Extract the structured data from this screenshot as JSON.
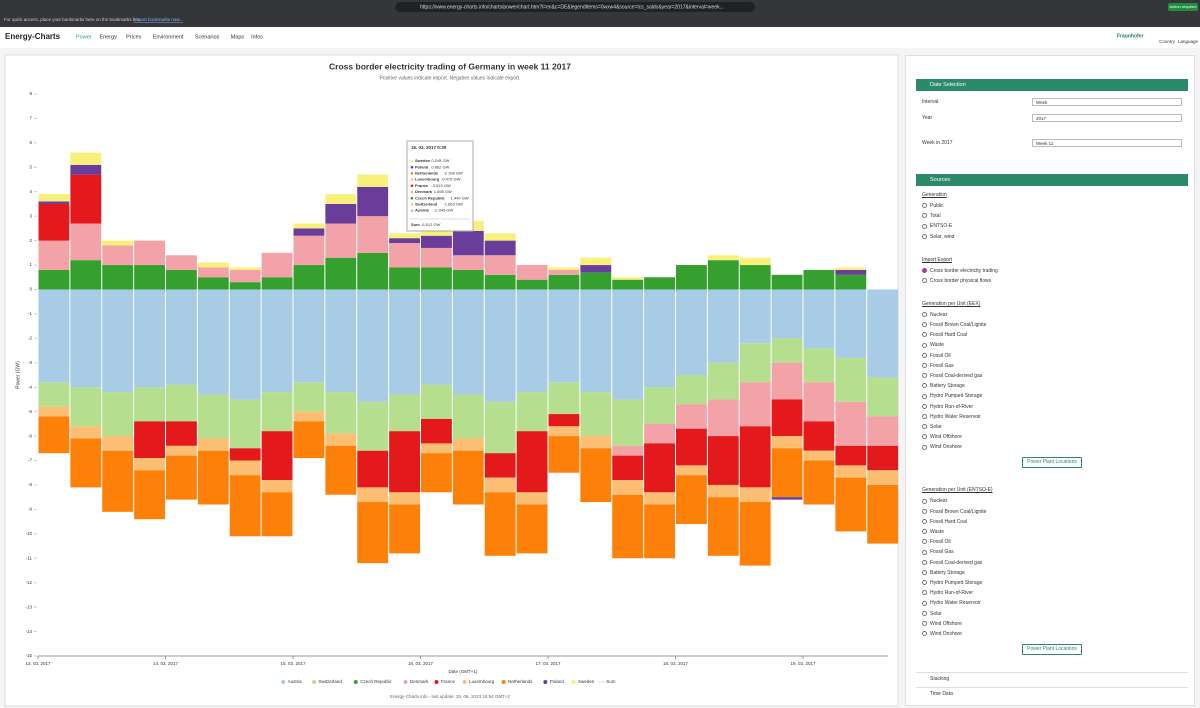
{
  "browser": {
    "url": "https://www.energy-charts.info/charts/power/chart.htm?l=en&c=DE&legendItems=0wxw4&source=tcs_saldo&year=2017&interval=week...",
    "bookmarks_hint": "For quick access, place your bookmarks here on the bookmarks bar.",
    "bookmarks_link": "Import bookmarks now...",
    "action_button": "Action required"
  },
  "nav": {
    "logo": "Energy-Charts",
    "menu": [
      "Power",
      "Energy",
      "Prices",
      "Environment",
      "Scenarios",
      "Maps",
      "Infos"
    ],
    "org": "Fraunhofer",
    "country": "Country",
    "language": "Language"
  },
  "chart_data": {
    "type": "stacked_bar",
    "title": "Cross border electricity trading of Germany in week 11 2017",
    "subtitle": "Positive values indicate import. Negative values indicate export.",
    "y_label": "Power (GW)",
    "x_label": "Date (GMT+1)",
    "footer": "Energy-Charts.info - last update: 25. 06. 2023 16:54 GMT+2",
    "x": [
      0,
      6,
      12,
      18,
      24,
      30,
      36,
      42,
      48,
      54,
      60,
      66,
      72,
      78,
      84,
      90,
      96,
      102,
      108,
      114,
      120,
      126,
      132,
      138,
      144,
      150,
      156
    ],
    "xlim": [
      0,
      160
    ],
    "xticks": [
      {
        "value": 0,
        "label": "13. 03. 2017"
      },
      {
        "value": 24,
        "label": "14. 03. 2017"
      },
      {
        "value": 48,
        "label": "15. 03. 2017"
      },
      {
        "value": 72,
        "label": "16. 03. 2017"
      },
      {
        "value": 96,
        "label": "17. 03. 2017"
      },
      {
        "value": 120,
        "label": "18. 03. 2017"
      },
      {
        "value": 144,
        "label": "19. 03. 2017"
      }
    ],
    "ylim": [
      -15,
      8
    ],
    "yticks": [
      -15,
      -14,
      -13,
      -12,
      -11,
      -10,
      -9,
      -8,
      -7,
      -6,
      -5,
      -4,
      -3,
      -2,
      -1,
      0,
      1,
      2,
      3,
      4,
      5,
      6,
      7,
      8
    ],
    "grid": false,
    "series": [
      {
        "name": "Austria",
        "color": "#a8cbe6",
        "values": [
          -3.8,
          -4.0,
          -4.2,
          -4.0,
          -3.9,
          -4.3,
          -4.5,
          -4.2,
          -3.8,
          -4.2,
          -4.6,
          -4.3,
          -3.9,
          -4.3,
          -4.6,
          -4.2,
          -3.8,
          -4.2,
          -4.5,
          -4.0,
          -3.5,
          -3.0,
          -2.2,
          -2.0,
          -2.4,
          -2.8,
          -3.6
        ]
      },
      {
        "name": "Switzerland",
        "color": "#b5de8e",
        "values": [
          -1.0,
          -1.6,
          -1.8,
          -1.4,
          -1.5,
          -1.8,
          -2.0,
          -1.6,
          -1.2,
          -1.7,
          -2.0,
          -1.5,
          -1.4,
          -1.8,
          -2.1,
          -1.6,
          -1.3,
          -1.8,
          -1.9,
          -1.5,
          -1.2,
          -1.5,
          -1.6,
          -1.0,
          -1.4,
          -1.8,
          -1.6
        ]
      },
      {
        "name": "Czech Republic",
        "color": "#35a02d",
        "values": [
          0.8,
          1.2,
          1.0,
          1.0,
          0.8,
          0.5,
          0.3,
          0.5,
          1.0,
          1.3,
          1.5,
          0.9,
          0.9,
          0.8,
          0.6,
          0.4,
          0.6,
          0.7,
          0.4,
          0.5,
          1.0,
          1.2,
          1.0,
          0.6,
          0.8,
          0.6,
          0.0
        ]
      },
      {
        "name": "Denmark",
        "color": "#f3a2a8",
        "values": [
          1.2,
          1.5,
          0.8,
          1.0,
          0.6,
          0.4,
          0.5,
          1.0,
          1.2,
          1.4,
          1.5,
          1.0,
          0.8,
          0.6,
          0.8,
          0.6,
          0.2,
          0.0,
          -0.4,
          -0.8,
          -1.0,
          -1.5,
          -1.8,
          -1.5,
          -1.6,
          -1.8,
          -1.2
        ]
      },
      {
        "name": "France",
        "color": "#e3191c",
        "values": [
          1.5,
          2.0,
          0.0,
          -1.5,
          -1.0,
          0.0,
          -0.5,
          -2.0,
          0.0,
          0.0,
          -1.5,
          -2.5,
          -1.0,
          0.0,
          -1.0,
          -2.5,
          -0.5,
          0.0,
          -1.0,
          -2.0,
          -1.5,
          -2.0,
          -2.5,
          -1.5,
          -1.2,
          -0.8,
          -1.0
        ]
      },
      {
        "name": "Luxembourg",
        "color": "#fcbe72",
        "values": [
          -0.4,
          -0.5,
          -0.6,
          -0.5,
          -0.4,
          -0.5,
          -0.6,
          -0.5,
          -0.4,
          -0.5,
          -0.6,
          -0.5,
          -0.4,
          -0.5,
          -0.6,
          -0.5,
          -0.4,
          -0.5,
          -0.6,
          -0.5,
          -0.4,
          -0.5,
          -0.6,
          -0.5,
          -0.4,
          -0.5,
          -0.6
        ]
      },
      {
        "name": "Netherlands",
        "color": "#fd8008",
        "values": [
          -1.5,
          -2.0,
          -2.5,
          -2.0,
          -1.8,
          -2.2,
          -2.5,
          -1.8,
          -1.5,
          -2.0,
          -2.5,
          -2.0,
          -1.6,
          -2.2,
          -2.6,
          -2.0,
          -1.5,
          -2.2,
          -2.6,
          -2.2,
          -2.0,
          -2.4,
          -2.6,
          -2.0,
          -1.8,
          -2.2,
          -2.4
        ]
      },
      {
        "name": "Poland",
        "color": "#6a3d9a",
        "values": [
          0.1,
          0.4,
          0.0,
          0.0,
          0.0,
          0.0,
          0.0,
          0.0,
          0.3,
          0.8,
          1.2,
          0.2,
          0.5,
          1.0,
          0.6,
          0.0,
          0.0,
          0.3,
          0.0,
          0.0,
          0.0,
          0.0,
          0.0,
          -0.1,
          0.0,
          0.2,
          0.0
        ]
      },
      {
        "name": "Sweden",
        "color": "#f8f07a",
        "values": [
          0.3,
          0.5,
          0.2,
          0.0,
          0.0,
          0.2,
          0.1,
          0.0,
          0.2,
          0.4,
          0.5,
          0.2,
          0.3,
          0.4,
          0.3,
          0.0,
          0.1,
          0.3,
          0.1,
          0.0,
          0.0,
          0.2,
          0.3,
          0.0,
          0.0,
          0.1,
          0.0
        ]
      }
    ],
    "sum_label": "Sum",
    "tooltip": {
      "title": "16. 03. 2017 0:30",
      "rows": [
        {
          "name": "Sweden",
          "value": "0.245 GW"
        },
        {
          "name": "Poland",
          "value": "0.862 GW"
        },
        {
          "name": "Netherlands",
          "value": "-2.108 GW"
        },
        {
          "name": "Luxembourg",
          "value": "-0.479 GW"
        },
        {
          "name": "France",
          "value": "-3.519 GW"
        },
        {
          "name": "Denmark",
          "value": "1.655 GW"
        },
        {
          "name": "Czech Republic",
          "value": "1.440 GW"
        },
        {
          "name": "Switzerland",
          "value": "-1.663 GW"
        },
        {
          "name": "Austria",
          "value": "-2.945 GW"
        }
      ],
      "sum": "-6.512 GW"
    }
  },
  "sidebar": {
    "date_selection": {
      "title": "Date Selection",
      "fields": [
        {
          "label": "Interval",
          "value": "Week"
        },
        {
          "label": "Year",
          "value": "2017"
        },
        {
          "label": "Week in 2017",
          "value": "Week 11"
        }
      ]
    },
    "sources": {
      "title": "Sources",
      "groups": [
        {
          "title": "Generation",
          "options": [
            "Public",
            "Total",
            "ENTSO-E",
            "Solar, wind"
          ]
        },
        {
          "title": "Import Export",
          "options": [
            "Cross border electricity trading",
            "Cross border physical flows"
          ],
          "selected": 0
        },
        {
          "title": "Generation per Unit (EEX)",
          "options": [
            "Nuclear",
            "Fossil Brown Coal/Lignite",
            "Fossil Hard Coal",
            "Waste",
            "Fossil Oil",
            "Fossil Gas",
            "Fossil Coal-derived gas",
            "Battery Storage",
            "Hydro Pumped Storage",
            "Hydro Run-of-River",
            "Hydro Water Reservoir",
            "Solar",
            "Wind Offshore",
            "Wind Onshore"
          ],
          "button": "Power Plant Locations"
        },
        {
          "title": "Generation per Unit (ENTSO-E)",
          "options": [
            "Nuclear",
            "Fossil Brown Coal/Lignite",
            "Fossil Hard Coal",
            "Waste",
            "Fossil Oil",
            "Fossil Gas",
            "Fossil Coal-derived gas",
            "Battery Storage",
            "Hydro Pumped Storage",
            "Hydro Run-of-River",
            "Hydro Water Reservoir",
            "Solar",
            "Wind Offshore",
            "Wind Onshore"
          ],
          "button": "Power Plant Locations"
        }
      ]
    },
    "collapsed": [
      "Stacking",
      "Time Data"
    ]
  }
}
